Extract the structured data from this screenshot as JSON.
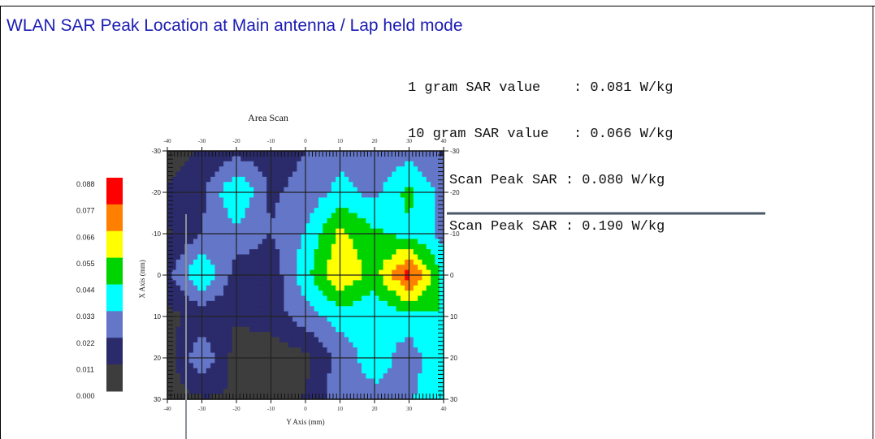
{
  "header": {
    "title": "WLAN SAR Peak Location at Main antenna / Lap held mode"
  },
  "stats": {
    "lines": [
      "1 gram SAR value    : 0.081 W/kg",
      "10 gram SAR value   : 0.066 W/kg",
      "Area Scan Peak SAR : 0.080 W/kg",
      "Zoom Scan Peak SAR : 0.190 W/kg"
    ]
  },
  "chart_data": {
    "type": "heatmap",
    "title": "Area Scan",
    "xlabel": "Y Axis (mm)",
    "ylabel": "X Axis (mm)",
    "x_ticks": [
      "-40",
      "-30",
      "-20",
      "-10",
      "0",
      "10",
      "20",
      "30",
      "40"
    ],
    "y_ticks": [
      "-30",
      "-20",
      "-10",
      "0",
      "10",
      "20",
      "30"
    ],
    "xlim": [
      -40,
      40
    ],
    "ylim": [
      -30,
      30
    ],
    "unit": "W/kg",
    "colorbar_labels": [
      "0.088",
      "0.077",
      "0.066",
      "0.055",
      "0.044",
      "0.033",
      "0.022",
      "0.011",
      "0.000"
    ],
    "colorbar_colors": [
      "#ff0000",
      "#ff7f00",
      "#ffff00",
      "#00d400",
      "#00ffff",
      "#6476c8",
      "#2b2b6b",
      "#3d3d3d"
    ],
    "x": [
      -40,
      -30,
      -20,
      -10,
      0,
      10,
      20,
      30,
      40
    ],
    "y": [
      -30,
      -20,
      -10,
      0,
      10,
      20,
      30
    ],
    "values": [
      [
        0.005,
        0.012,
        0.018,
        0.016,
        0.022,
        0.03,
        0.025,
        0.028,
        0.02
      ],
      [
        0.012,
        0.02,
        0.045,
        0.02,
        0.026,
        0.036,
        0.03,
        0.048,
        0.028
      ],
      [
        0.01,
        0.022,
        0.03,
        0.022,
        0.034,
        0.058,
        0.046,
        0.04,
        0.03
      ],
      [
        0.018,
        0.046,
        0.016,
        0.014,
        0.04,
        0.066,
        0.05,
        0.082,
        0.04
      ],
      [
        0.008,
        0.014,
        0.012,
        0.016,
        0.028,
        0.038,
        0.034,
        0.04,
        0.044
      ],
      [
        0.006,
        0.032,
        0.006,
        0.004,
        0.008,
        0.026,
        0.04,
        0.026,
        0.045
      ],
      [
        0.004,
        0.01,
        0.01,
        0.004,
        0.012,
        0.03,
        0.028,
        0.032,
        0.04
      ]
    ]
  }
}
